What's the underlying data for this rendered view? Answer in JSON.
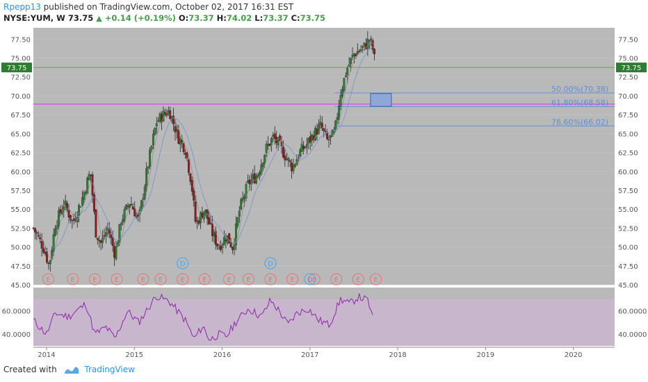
{
  "header": {
    "author": "Rpepp13",
    "published_text": "published on TradingView.com, October 02, 2017 16:31 EST",
    "symbol": "NYSE:YUM, W",
    "last": "73.75",
    "change": "+0.14 (+0.19%)",
    "o_label": "O:",
    "o": "73.37",
    "h_label": "H:",
    "h": "74.02",
    "l_label": "L:",
    "l": "73.37",
    "c_label": "C:",
    "c": "73.75"
  },
  "footer": {
    "created_with": "Created with",
    "brand": "TradingView"
  },
  "colors": {
    "plot_bg": "#b9b9b9",
    "up": "#2e7d32",
    "down": "#8e1b1b",
    "price_line": "#4caf50",
    "resistance": "#e040fb",
    "fib": "#5c8fd6",
    "rsi": "#8e24aa",
    "rsi_band": "#cdb6d4"
  },
  "chart_data": {
    "type": "candlestick",
    "y_axis": {
      "ticks": [
        "77.50",
        "75.00",
        "72.50",
        "70.00",
        "67.50",
        "65.00",
        "62.50",
        "60.00",
        "57.50",
        "55.00",
        "52.50",
        "50.00",
        "47.50",
        "45.00"
      ],
      "range": [
        45.0,
        79.0
      ]
    },
    "x_axis": {
      "ticks": [
        "2014",
        "2015",
        "2016",
        "2017",
        "2018",
        "2019",
        "2020"
      ]
    },
    "last_price": {
      "value": 73.75,
      "label": "73.75"
    },
    "resistance_level": 68.9,
    "fib_levels": [
      {
        "label": "50.00%(70.38)",
        "value": 70.38
      },
      {
        "label": "61.80%(68.58)",
        "value": 68.58
      },
      {
        "label": "78.60%(66.02)",
        "value": 66.02
      }
    ],
    "target_box": {
      "low": 68.6,
      "high": 70.3
    },
    "weekly_closes_keypoints": [
      {
        "t": 2013.85,
        "v": 52.5
      },
      {
        "t": 2013.97,
        "v": 49.8
      },
      {
        "t": 2014.03,
        "v": 47.5
      },
      {
        "t": 2014.1,
        "v": 53.0
      },
      {
        "t": 2014.2,
        "v": 55.8
      },
      {
        "t": 2014.3,
        "v": 53.2
      },
      {
        "t": 2014.4,
        "v": 56.2
      },
      {
        "t": 2014.5,
        "v": 60.0
      },
      {
        "t": 2014.56,
        "v": 52.0
      },
      {
        "t": 2014.62,
        "v": 50.5
      },
      {
        "t": 2014.7,
        "v": 52.5
      },
      {
        "t": 2014.78,
        "v": 49.0
      },
      {
        "t": 2014.85,
        "v": 53.5
      },
      {
        "t": 2014.95,
        "v": 56.0
      },
      {
        "t": 2015.05,
        "v": 53.5
      },
      {
        "t": 2015.15,
        "v": 60.5
      },
      {
        "t": 2015.25,
        "v": 66.5
      },
      {
        "t": 2015.33,
        "v": 67.5
      },
      {
        "t": 2015.4,
        "v": 68.0
      },
      {
        "t": 2015.5,
        "v": 64.5
      },
      {
        "t": 2015.58,
        "v": 63.0
      },
      {
        "t": 2015.65,
        "v": 58.5
      },
      {
        "t": 2015.7,
        "v": 53.0
      },
      {
        "t": 2015.8,
        "v": 55.0
      },
      {
        "t": 2015.88,
        "v": 52.0
      },
      {
        "t": 2015.96,
        "v": 50.0
      },
      {
        "t": 2016.05,
        "v": 51.5
      },
      {
        "t": 2016.12,
        "v": 50.0
      },
      {
        "t": 2016.2,
        "v": 55.0
      },
      {
        "t": 2016.3,
        "v": 58.5
      },
      {
        "t": 2016.4,
        "v": 59.5
      },
      {
        "t": 2016.5,
        "v": 63.0
      },
      {
        "t": 2016.58,
        "v": 64.5
      },
      {
        "t": 2016.65,
        "v": 63.5
      },
      {
        "t": 2016.72,
        "v": 62.0
      },
      {
        "t": 2016.8,
        "v": 60.5
      },
      {
        "t": 2016.88,
        "v": 62.5
      },
      {
        "t": 2016.96,
        "v": 63.5
      },
      {
        "t": 2017.05,
        "v": 65.0
      },
      {
        "t": 2017.12,
        "v": 66.0
      },
      {
        "t": 2017.2,
        "v": 64.0
      },
      {
        "t": 2017.28,
        "v": 65.0
      },
      {
        "t": 2017.35,
        "v": 70.5
      },
      {
        "t": 2017.42,
        "v": 73.5
      },
      {
        "t": 2017.5,
        "v": 75.5
      },
      {
        "t": 2017.56,
        "v": 76.0
      },
      {
        "t": 2017.62,
        "v": 76.5
      },
      {
        "t": 2017.68,
        "v": 77.5
      },
      {
        "t": 2017.72,
        "v": 76.0
      },
      {
        "t": 2017.75,
        "v": 73.75
      }
    ],
    "earnings_markers": {
      "label": "E",
      "t": [
        2014.02,
        2014.3,
        2014.55,
        2014.8,
        2015.1,
        2015.3,
        2015.55,
        2015.8,
        2016.08,
        2016.3,
        2016.55,
        2016.8,
        2017.05,
        2017.3,
        2017.55,
        2017.75
      ]
    },
    "dividend_markers": {
      "label": "D",
      "t": [
        2015.55,
        2016.55,
        2017.0
      ]
    },
    "rsi": {
      "ticks": [
        "60.0000",
        "40.0000"
      ],
      "range": [
        30,
        80
      ],
      "band": [
        30,
        70
      ],
      "keypoints": [
        {
          "t": 2013.85,
          "v": 52
        },
        {
          "t": 2014.0,
          "v": 40
        },
        {
          "t": 2014.1,
          "v": 58
        },
        {
          "t": 2014.25,
          "v": 55
        },
        {
          "t": 2014.45,
          "v": 66
        },
        {
          "t": 2014.55,
          "v": 40
        },
        {
          "t": 2014.68,
          "v": 46
        },
        {
          "t": 2014.78,
          "v": 36
        },
        {
          "t": 2014.92,
          "v": 60
        },
        {
          "t": 2015.05,
          "v": 50
        },
        {
          "t": 2015.25,
          "v": 73
        },
        {
          "t": 2015.4,
          "v": 68
        },
        {
          "t": 2015.58,
          "v": 52
        },
        {
          "t": 2015.68,
          "v": 36
        },
        {
          "t": 2015.78,
          "v": 47
        },
        {
          "t": 2015.86,
          "v": 35
        },
        {
          "t": 2015.96,
          "v": 40
        },
        {
          "t": 2016.05,
          "v": 38
        },
        {
          "t": 2016.15,
          "v": 50
        },
        {
          "t": 2016.3,
          "v": 62
        },
        {
          "t": 2016.45,
          "v": 55
        },
        {
          "t": 2016.55,
          "v": 69
        },
        {
          "t": 2016.65,
          "v": 60
        },
        {
          "t": 2016.75,
          "v": 48
        },
        {
          "t": 2016.85,
          "v": 58
        },
        {
          "t": 2016.98,
          "v": 62
        },
        {
          "t": 2017.1,
          "v": 52
        },
        {
          "t": 2017.22,
          "v": 48
        },
        {
          "t": 2017.35,
          "v": 70
        },
        {
          "t": 2017.45,
          "v": 66
        },
        {
          "t": 2017.55,
          "v": 72
        },
        {
          "t": 2017.66,
          "v": 69
        },
        {
          "t": 2017.72,
          "v": 52
        }
      ]
    }
  }
}
